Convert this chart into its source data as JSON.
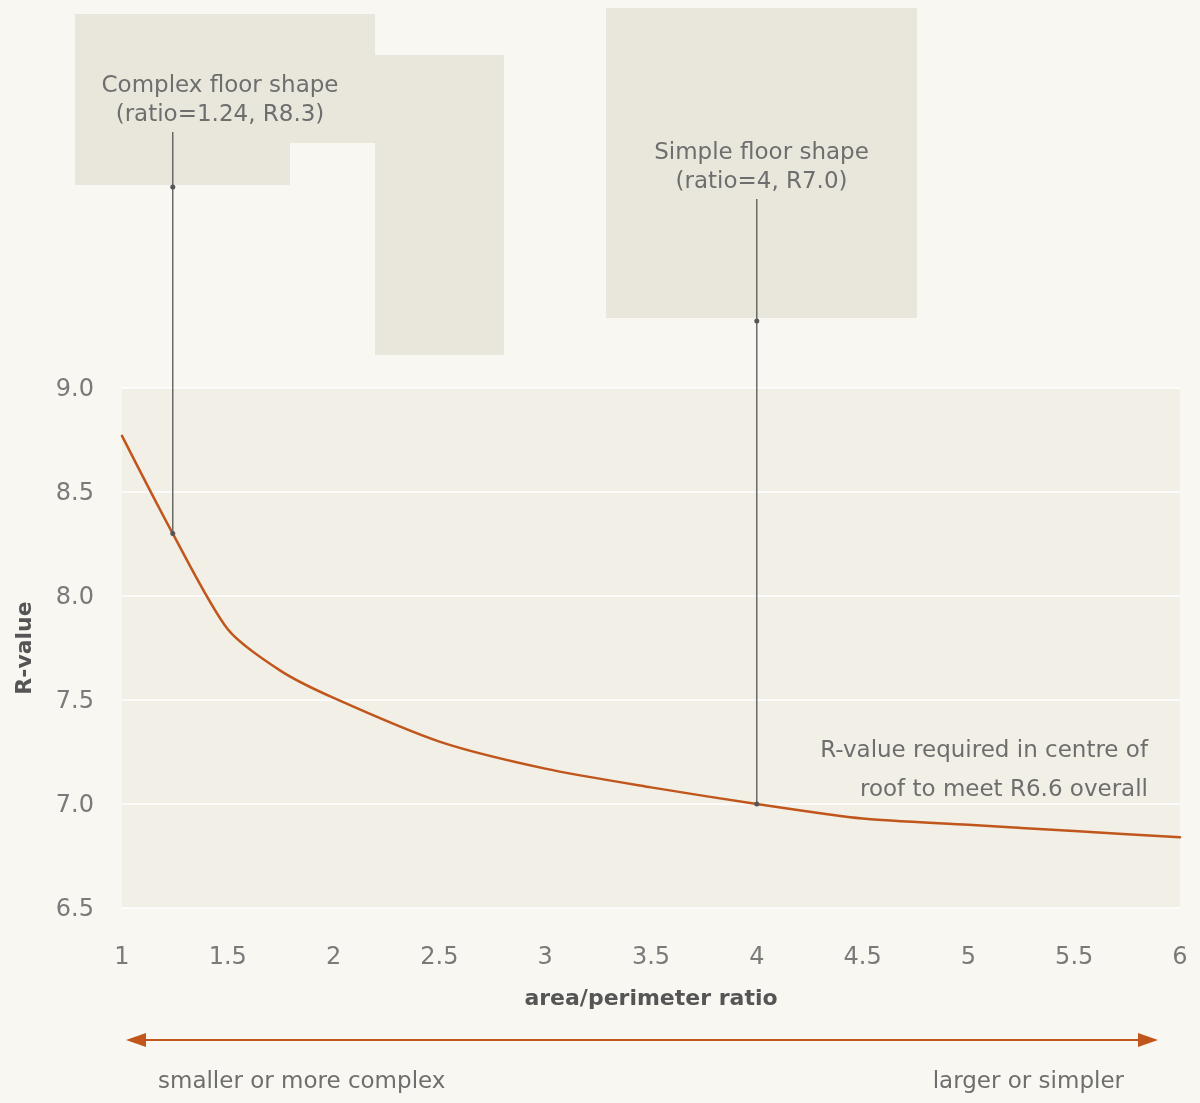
{
  "chart_data": {
    "type": "line",
    "xlabel": "area/perimeter ratio",
    "ylabel": "R-value",
    "x": [
      1,
      1.24,
      1.5,
      1.75,
      2,
      2.5,
      3,
      3.5,
      4,
      4.5,
      5,
      5.5,
      6
    ],
    "series": [
      {
        "color": "#c0561b",
        "values": [
          8.77,
          8.3,
          7.84,
          7.64,
          7.51,
          7.3,
          7.17,
          7.08,
          7.0,
          6.93,
          6.9,
          6.87,
          6.84
        ]
      }
    ],
    "xlim": [
      1,
      6
    ],
    "xticks": [
      1,
      1.5,
      2,
      2.5,
      3,
      3.5,
      4,
      4.5,
      5,
      5.5,
      6
    ],
    "ylim": [
      6.5,
      9
    ],
    "yticks": [
      6.5,
      {
        "value": 7,
        "label": "7.0"
      },
      7.5,
      {
        "value": 8,
        "label": "8.0"
      },
      8.5,
      {
        "value": 9,
        "label": "9.0"
      }
    ],
    "grid": "y",
    "marker": "none",
    "line_style": "solid",
    "annotations": [
      {
        "text": "Complex floor shape\n(ratio=1.24, R8.3)",
        "x": 1.24,
        "y": 8.3
      },
      {
        "text": "Simple floor shape\n(ratio=4, R7.0)",
        "x": 4,
        "y": 7.0
      },
      "R-value required in centre of roof to meet R6.6 overall",
      "smaller or more complex",
      "larger or simpler"
    ]
  }
}
